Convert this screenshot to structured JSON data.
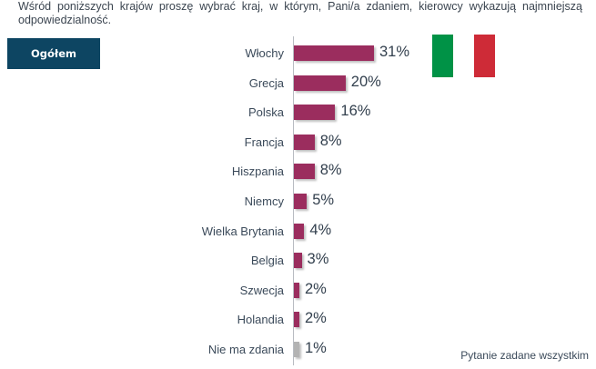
{
  "question": "Wśród poniższych krajów proszę wybrać kraj, w którym, Pani/a zdaniem, kierowcy wykazują najmniejszą odpowiedzialność.",
  "segment_button": "Ogółem",
  "footnote": "Pytanie zadane wszystkim",
  "flag": {
    "name": "Italy",
    "colors": [
      "#009246",
      "#ffffff",
      "#ce2b37"
    ]
  },
  "colors": {
    "bar": "#9b2d5e",
    "bar_no_opinion": "#b3b3b3",
    "button_bg": "#0d4562"
  },
  "chart_data": {
    "type": "bar",
    "orientation": "horizontal",
    "title": "Wśród poniższych krajów proszę wybrać kraj, w którym, Pani/a zdaniem, kierowcy wykazują najmniejszą odpowiedzialność.",
    "xlabel": "",
    "ylabel": "",
    "unit": "%",
    "categories": [
      "Włochy",
      "Grecja",
      "Polska",
      "Francja",
      "Hiszpania",
      "Niemcy",
      "Wielka Brytania",
      "Belgia",
      "Szwecja",
      "Holandia",
      "Nie ma zdania"
    ],
    "values": [
      31,
      20,
      16,
      8,
      8,
      5,
      4,
      3,
      2,
      2,
      1
    ],
    "value_labels": [
      "31%",
      "20%",
      "16%",
      "8%",
      "8%",
      "5%",
      "4%",
      "3%",
      "2%",
      "2%",
      "1%"
    ],
    "grid": false,
    "legend": "none",
    "xlim": [
      0,
      35
    ]
  }
}
